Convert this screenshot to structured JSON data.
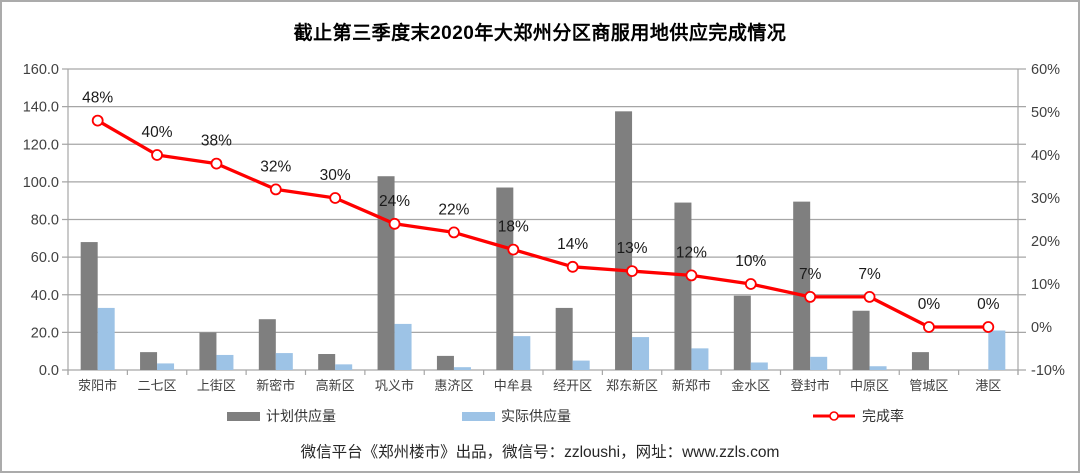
{
  "chart_data": {
    "type": "bar+line combo",
    "title": "截止第三季度末2020年大郑州分区商服用地供应完成情况",
    "categories": [
      "荥阳市",
      "二七区",
      "上街区",
      "新密市",
      "高新区",
      "巩义市",
      "惠济区",
      "中牟县",
      "经开区",
      "郑东新区",
      "新郑市",
      "金水区",
      "登封市",
      "中原区",
      "管城区",
      "港区"
    ],
    "series": [
      {
        "name": "计划供应量",
        "type": "bar",
        "axis": "left",
        "color": "#7F7F7F",
        "values": [
          68,
          9.5,
          20,
          27,
          8.5,
          103,
          7.5,
          97,
          33,
          137.5,
          89,
          39.5,
          89.5,
          31.5,
          9.5,
          0
        ]
      },
      {
        "name": "实际供应量",
        "type": "bar",
        "axis": "left",
        "color": "#9DC3E6",
        "values": [
          33,
          3.5,
          8,
          9,
          3,
          24.5,
          1.5,
          18,
          5,
          17.5,
          11.5,
          4,
          7,
          2,
          0,
          21
        ]
      },
      {
        "name": "完成率",
        "type": "line",
        "axis": "right",
        "color": "#FF0000",
        "marker": "open-circle",
        "values": [
          48,
          40,
          38,
          32,
          30,
          24,
          22,
          18,
          14,
          13,
          12,
          10,
          7,
          7,
          0,
          0
        ],
        "labels": [
          "48%",
          "40%",
          "38%",
          "32%",
          "30%",
          "24%",
          "22%",
          "18%",
          "14%",
          "13%",
          "12%",
          "10%",
          "7%",
          "7%",
          "0%",
          "0%"
        ]
      }
    ],
    "left_axis": {
      "min": 0,
      "max": 160,
      "step": 20,
      "tick_labels": [
        "0.0",
        "20.0",
        "40.0",
        "60.0",
        "80.0",
        "100.0",
        "120.0",
        "140.0",
        "160.0"
      ]
    },
    "right_axis": {
      "min": -10,
      "max": 60,
      "step": 10,
      "tick_labels": [
        "-10%",
        "0%",
        "10%",
        "20%",
        "30%",
        "40%",
        "50%",
        "60%"
      ]
    },
    "grid": "horizontal",
    "legend_position": "bottom",
    "colors": {
      "grid": "#A6A6A6",
      "axis_text": "#404040",
      "data_label": "#1A1A1A",
      "background": "#FFFFFF",
      "border": "#ABABAB"
    }
  },
  "legend": {
    "items": [
      {
        "label": "计划供应量",
        "swatch": "bar",
        "color": "#7F7F7F"
      },
      {
        "label": "实际供应量",
        "swatch": "bar",
        "color": "#9DC3E6"
      },
      {
        "label": "完成率",
        "swatch": "line",
        "color": "#FF0000"
      }
    ]
  },
  "footer": {
    "text": "微信平台《郑州楼市》出品，微信号：zzloushi，网址：www.zzls.com"
  }
}
